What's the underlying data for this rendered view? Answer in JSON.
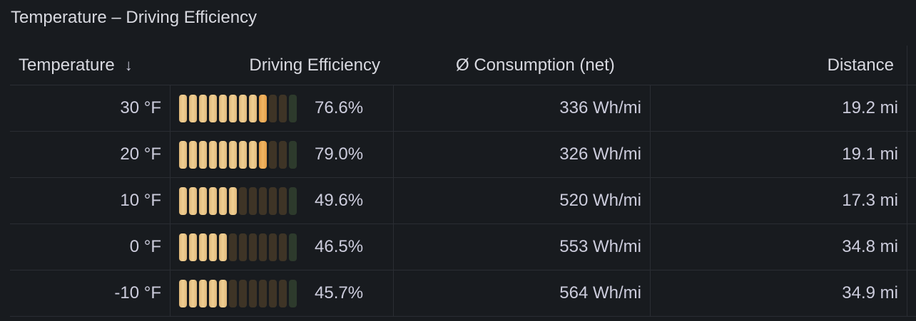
{
  "panel": {
    "title": "Temperature – Driving Efficiency"
  },
  "table": {
    "headers": {
      "temperature": "Temperature",
      "sort_icon": "arrow-down-icon",
      "efficiency": "Driving Efficiency",
      "consumption": "Ø Consumption (net)",
      "distance": "Distance"
    },
    "rows": [
      {
        "temperature": "30 °F",
        "efficiency": "76.6%",
        "efficiency_value": 0.766,
        "consumption": "336 Wh/mi",
        "distance": "19.2 mi"
      },
      {
        "temperature": "20 °F",
        "efficiency": "79.0%",
        "efficiency_value": 0.79,
        "consumption": "326 Wh/mi",
        "distance": "19.1 mi"
      },
      {
        "temperature": "10 °F",
        "efficiency": "49.6%",
        "efficiency_value": 0.496,
        "consumption": "520 Wh/mi",
        "distance": "17.3 mi"
      },
      {
        "temperature": "0 °F",
        "efficiency": "46.5%",
        "efficiency_value": 0.465,
        "consumption": "553 Wh/mi",
        "distance": "34.8 mi"
      },
      {
        "temperature": "-10 °F",
        "efficiency": "45.7%",
        "efficiency_value": 0.457,
        "consumption": "564 Wh/mi",
        "distance": "34.9 mi"
      }
    ]
  },
  "colors": {
    "background": "#181b1f",
    "gauge_fill": "#f0cf93",
    "gauge_peak": "#f1b563",
    "gauge_empty": "#3e3426",
    "gauge_end": "#2d3a2c"
  }
}
